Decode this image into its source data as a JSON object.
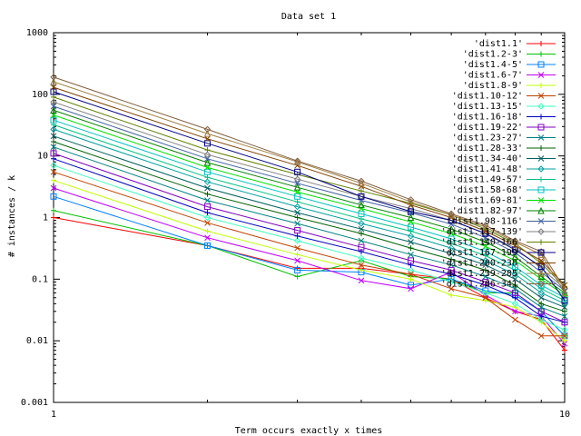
{
  "chart_data": {
    "type": "line",
    "title": "Data set 1",
    "xlabel": "Term occurs exactly x times",
    "ylabel": "# instances / k",
    "x_scale": "log",
    "y_scale": "log",
    "xlim": [
      1,
      10
    ],
    "ylim": [
      0.001,
      1000
    ],
    "x_ticks": [
      "1",
      "10"
    ],
    "y_ticks": [
      "0.001",
      "0.01",
      "0.1",
      "1",
      "10",
      "100",
      "1000"
    ],
    "legend_position": "top-right",
    "series": [
      {
        "name": "'dist1.1'",
        "color": "#ff0000",
        "marker": "+",
        "x": [
          1,
          2,
          3,
          4,
          5,
          6,
          7,
          8,
          9,
          10
        ],
        "y": [
          1.0,
          0.35,
          0.15,
          0.15,
          0.12,
          0.1,
          0.05,
          0.03,
          0.022,
          0.007
        ]
      },
      {
        "name": "'dist1.2-3'",
        "color": "#00c000",
        "marker": "+",
        "x": [
          1,
          2,
          3,
          4,
          5,
          6,
          7,
          8,
          9,
          10
        ],
        "y": [
          1.3,
          0.35,
          0.11,
          0.2,
          0.11,
          0.1,
          0.06,
          0.06,
          0.03,
          0.012
        ]
      },
      {
        "name": "'dist1.4-5'",
        "color": "#0080ff",
        "marker": "sq",
        "x": [
          1,
          2,
          3,
          4,
          5,
          6,
          7,
          8,
          9,
          10
        ],
        "y": [
          2.2,
          0.35,
          0.14,
          0.13,
          0.08,
          0.1,
          0.065,
          0.055,
          0.03,
          0.012
        ]
      },
      {
        "name": "'dist1.6-7'",
        "color": "#c000ff",
        "marker": "x",
        "x": [
          1,
          2,
          3,
          4,
          5,
          6,
          7,
          8,
          9,
          10
        ],
        "y": [
          3.0,
          0.47,
          0.2,
          0.095,
          0.07,
          0.13,
          0.055,
          0.03,
          0.025,
          0.009
        ]
      },
      {
        "name": "'dist1.8-9'",
        "color": "#c0ff00",
        "marker": "+",
        "x": [
          1,
          2,
          3,
          4,
          5,
          6,
          7,
          8,
          9,
          10
        ],
        "y": [
          4.0,
          0.6,
          0.25,
          0.14,
          0.1,
          0.055,
          0.045,
          0.035,
          0.02,
          0.01
        ]
      },
      {
        "name": "'dist1.10-12'",
        "color": "#c04000",
        "marker": "x",
        "x": [
          1,
          2,
          3,
          4,
          5,
          6,
          7,
          8,
          9,
          10
        ],
        "y": [
          5.5,
          0.82,
          0.32,
          0.17,
          0.12,
          0.07,
          0.05,
          0.022,
          0.012,
          0.012
        ]
      },
      {
        "name": "'dist1.13-15'",
        "color": "#40ffc0",
        "marker": "dm",
        "x": [
          1,
          2,
          3,
          4,
          5,
          6,
          7,
          8,
          9,
          10
        ],
        "y": [
          7.0,
          1.0,
          0.42,
          0.22,
          0.14,
          0.09,
          0.06,
          0.04,
          0.022,
          0.015
        ]
      },
      {
        "name": "'dist1.16-18'",
        "color": "#0000c0",
        "marker": "+",
        "x": [
          1,
          2,
          3,
          4,
          5,
          6,
          7,
          8,
          9,
          10
        ],
        "y": [
          9.0,
          1.2,
          0.5,
          0.28,
          0.17,
          0.12,
          0.08,
          0.05,
          0.025,
          0.02
        ]
      },
      {
        "name": "'dist1.19-22'",
        "color": "#8000c0",
        "marker": "sq",
        "x": [
          1,
          2,
          3,
          4,
          5,
          6,
          7,
          8,
          9,
          10
        ],
        "y": [
          11.0,
          1.5,
          0.62,
          0.33,
          0.2,
          0.14,
          0.09,
          0.06,
          0.03,
          0.02
        ]
      },
      {
        "name": "'dist1.23-27'",
        "color": "#008080",
        "marker": "x",
        "x": [
          1,
          2,
          3,
          4,
          5,
          6,
          7,
          8,
          9,
          10
        ],
        "y": [
          14.0,
          1.9,
          0.8,
          0.42,
          0.25,
          0.17,
          0.11,
          0.07,
          0.035,
          0.025
        ]
      },
      {
        "name": "'dist1.28-33'",
        "color": "#006000",
        "marker": "+",
        "x": [
          1,
          2,
          3,
          4,
          5,
          6,
          7,
          8,
          9,
          10
        ],
        "y": [
          17.0,
          2.4,
          1.0,
          0.55,
          0.32,
          0.21,
          0.14,
          0.08,
          0.04,
          0.03
        ]
      },
      {
        "name": "'dist1.34-40'",
        "color": "#006060",
        "marker": "x",
        "x": [
          1,
          2,
          3,
          4,
          5,
          6,
          7,
          8,
          9,
          10
        ],
        "y": [
          21.0,
          3.0,
          1.2,
          0.65,
          0.4,
          0.26,
          0.17,
          0.1,
          0.05,
          0.035
        ]
      },
      {
        "name": "'dist1.41-48'",
        "color": "#00a0a0",
        "marker": "dm",
        "x": [
          1,
          2,
          3,
          4,
          5,
          6,
          7,
          8,
          9,
          10
        ],
        "y": [
          27.0,
          3.8,
          1.5,
          0.8,
          0.5,
          0.32,
          0.2,
          0.12,
          0.06,
          0.04
        ]
      },
      {
        "name": "'dist1.49-57'",
        "color": "#00c080",
        "marker": "+",
        "x": [
          1,
          2,
          3,
          4,
          5,
          6,
          7,
          8,
          9,
          10
        ],
        "y": [
          32.0,
          4.5,
          1.8,
          0.95,
          0.6,
          0.38,
          0.24,
          0.14,
          0.07,
          0.045
        ]
      },
      {
        "name": "'dist1.58-68'",
        "color": "#00c0c0",
        "marker": "sq",
        "x": [
          1,
          2,
          3,
          4,
          5,
          6,
          7,
          8,
          9,
          10
        ],
        "y": [
          38.0,
          5.5,
          2.2,
          1.15,
          0.7,
          0.45,
          0.28,
          0.16,
          0.08,
          0.05
        ]
      },
      {
        "name": "'dist1.69-81'",
        "color": "#00e000",
        "marker": "x",
        "x": [
          1,
          2,
          3,
          4,
          5,
          6,
          7,
          8,
          9,
          10
        ],
        "y": [
          46.0,
          6.5,
          2.6,
          1.4,
          0.85,
          0.55,
          0.34,
          0.2,
          0.1,
          0.055
        ]
      },
      {
        "name": "'dist1.82-97'",
        "color": "#008000",
        "marker": "tri",
        "x": [
          1,
          2,
          3,
          4,
          5,
          6,
          7,
          8,
          9,
          10
        ],
        "y": [
          55.0,
          7.8,
          3.1,
          1.6,
          1.0,
          0.65,
          0.4,
          0.23,
          0.11,
          0.06
        ]
      },
      {
        "name": "'dist1.98-116'",
        "color": "#4060a0",
        "marker": "x",
        "x": [
          1,
          2,
          3,
          4,
          5,
          6,
          7,
          8,
          9,
          10
        ],
        "y": [
          64.0,
          9.0,
          3.6,
          1.9,
          1.2,
          0.78,
          0.47,
          0.27,
          0.13,
          0.065
        ]
      },
      {
        "name": "'dist1.117-139'",
        "color": "#808080",
        "marker": "dm",
        "x": [
          1,
          2,
          3,
          4,
          5,
          6,
          7,
          8,
          9,
          10
        ],
        "y": [
          75.0,
          10.5,
          4.2,
          2.2,
          1.4,
          0.9,
          0.55,
          0.32,
          0.15,
          0.07
        ]
      },
      {
        "name": "'dist1.140-166'",
        "color": "#608000",
        "marker": "+",
        "x": [
          1,
          2,
          3,
          4,
          5,
          6,
          7,
          8,
          9,
          10
        ],
        "y": [
          90.0,
          12.5,
          5.0,
          2.7,
          1.7,
          1.1,
          0.65,
          0.38,
          0.18,
          0.075
        ]
      },
      {
        "name": "'dist1.167-199'",
        "color": "#000080",
        "marker": "sq",
        "x": [
          1,
          2,
          3,
          4,
          5,
          6,
          7,
          8,
          9,
          10
        ],
        "y": [
          110.0,
          16.0,
          5.5,
          2.2,
          1.25,
          0.9,
          0.55,
          0.3,
          0.16,
          0.045
        ]
      },
      {
        "name": "'dist1.200-238'",
        "color": "#804000",
        "marker": "x",
        "x": [
          1,
          2,
          3,
          4,
          5,
          6,
          7,
          8,
          9,
          10
        ],
        "y": [
          130.0,
          19.0,
          7.0,
          3.2,
          1.6,
          1.0,
          0.6,
          0.35,
          0.2,
          0.08
        ]
      },
      {
        "name": "'dist1.239-285'",
        "color": "#a08040",
        "marker": "tri",
        "x": [
          1,
          2,
          3,
          4,
          5,
          6,
          7,
          8,
          9,
          10
        ],
        "y": [
          160.0,
          23.0,
          8.0,
          3.6,
          1.8,
          1.1,
          0.7,
          0.4,
          0.25,
          0.06
        ]
      },
      {
        "name": "'dist1.286-341'",
        "color": "#806040",
        "marker": "dm",
        "x": [
          1,
          2,
          3,
          4,
          5,
          6,
          7,
          8,
          9,
          10
        ],
        "y": [
          190.0,
          27.0,
          8.3,
          3.9,
          1.95,
          1.15,
          0.75,
          0.42,
          0.28,
          0.07
        ]
      }
    ]
  }
}
